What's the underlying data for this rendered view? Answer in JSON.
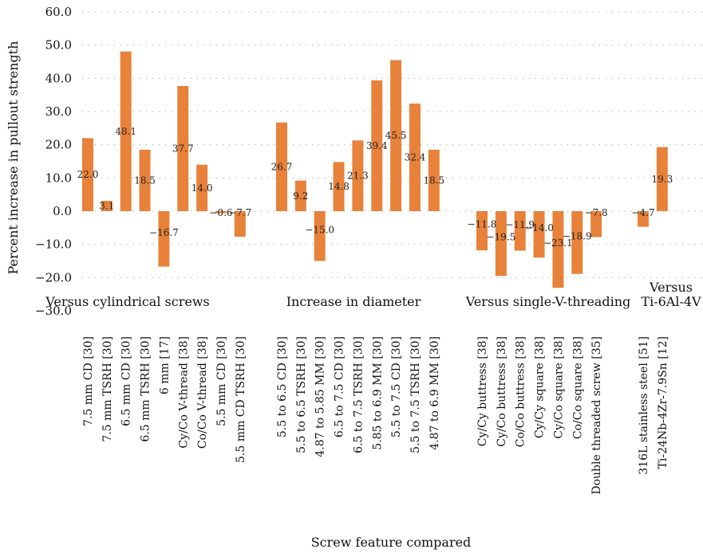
{
  "chart_data": {
    "type": "bar",
    "ylabel": "Percent increase in pullout strength",
    "xlabel": "Screw feature compared",
    "ylim": [
      -30,
      60
    ],
    "yticks": [
      "60.0",
      "50.0",
      "40.0",
      "30.0",
      "20.0",
      "10.0",
      "0.0",
      "−10.0",
      "−20.0",
      "−30.0"
    ],
    "grid": true,
    "bar_color": "#E8823A",
    "groups": [
      {
        "label": "Versus cylindrical screws",
        "bars": [
          {
            "category": "7.5 mm CD [30]",
            "value": 22.0,
            "label": "22.0"
          },
          {
            "category": "7.5 mm TSRH [30]",
            "value": 3.1,
            "label": "3.1"
          },
          {
            "category": "6.5 mm CD [30]",
            "value": 48.1,
            "label": "48.1"
          },
          {
            "category": "6.5 mm TSRH [30]",
            "value": 18.5,
            "label": "18.5"
          },
          {
            "category": "6 mm [17]",
            "value": -16.7,
            "label": "−16.7"
          },
          {
            "category": "Cy/Co V-thread [38]",
            "value": 37.7,
            "label": "37.7"
          },
          {
            "category": "Co/Co V-thread [38]",
            "value": 14.0,
            "label": "14.0"
          },
          {
            "category": "5.5 mm CD [30]",
            "value": -0.6,
            "label": "−0.6"
          },
          {
            "category": "5.5 mm CD TSRH [30]",
            "value": -7.7,
            "label": "−7.7"
          }
        ]
      },
      {
        "label": "Increase in diameter",
        "bars": [
          {
            "category": "5.5 to 6.5 CD [30]",
            "value": 26.7,
            "label": "26.7"
          },
          {
            "category": "5.5 to 6.5 TSRH [30]",
            "value": 9.2,
            "label": "9.2"
          },
          {
            "category": "4.87 to 5.85 MM [30]",
            "value": -15.0,
            "label": "−15.0"
          },
          {
            "category": "6.5 to 7.5 CD [30]",
            "value": 14.8,
            "label": "14.8"
          },
          {
            "category": "6.5 to 7.5 TSRH [30]",
            "value": 21.3,
            "label": "21.3"
          },
          {
            "category": "5.85 to 6.9 MM [30]",
            "value": 39.4,
            "label": "39.4"
          },
          {
            "category": "5.5 to 7.5 CD [30]",
            "value": 45.5,
            "label": "45.5"
          },
          {
            "category": "5.5 to 7.5 TSRH [30]",
            "value": 32.4,
            "label": "32.4"
          },
          {
            "category": "4.87 to 6.9 MM [30]",
            "value": 18.5,
            "label": "18.5"
          }
        ]
      },
      {
        "label": "Versus single-V-threading",
        "bars": [
          {
            "category": "Cy/Cy buttress [38]",
            "value": -11.8,
            "label": "−11.8"
          },
          {
            "category": "Cy/Co buttress [38]",
            "value": -19.5,
            "label": "−19.5"
          },
          {
            "category": "Co/Co buttress [38]",
            "value": -11.9,
            "label": "−11.9"
          },
          {
            "category": "Cy/Cy square [38]",
            "value": -14.0,
            "label": "−14.0"
          },
          {
            "category": "Cy/Co square [38]",
            "value": -23.1,
            "label": "−23.1"
          },
          {
            "category": "Co/Co square [38]",
            "value": -18.9,
            "label": "−18.9"
          },
          {
            "category": "Double threaded screw [35]",
            "value": -7.8,
            "label": "−7.8"
          }
        ]
      },
      {
        "label_lines": [
          "Versus",
          "Ti-6Al-4V"
        ],
        "bars": [
          {
            "category": "316L stainless steel [51]",
            "value": -4.7,
            "label": "−4.7"
          },
          {
            "category": "Ti-24Nb-4Zr-7.9Sn [12]",
            "value": 19.3,
            "label": "19.3"
          }
        ]
      }
    ]
  }
}
